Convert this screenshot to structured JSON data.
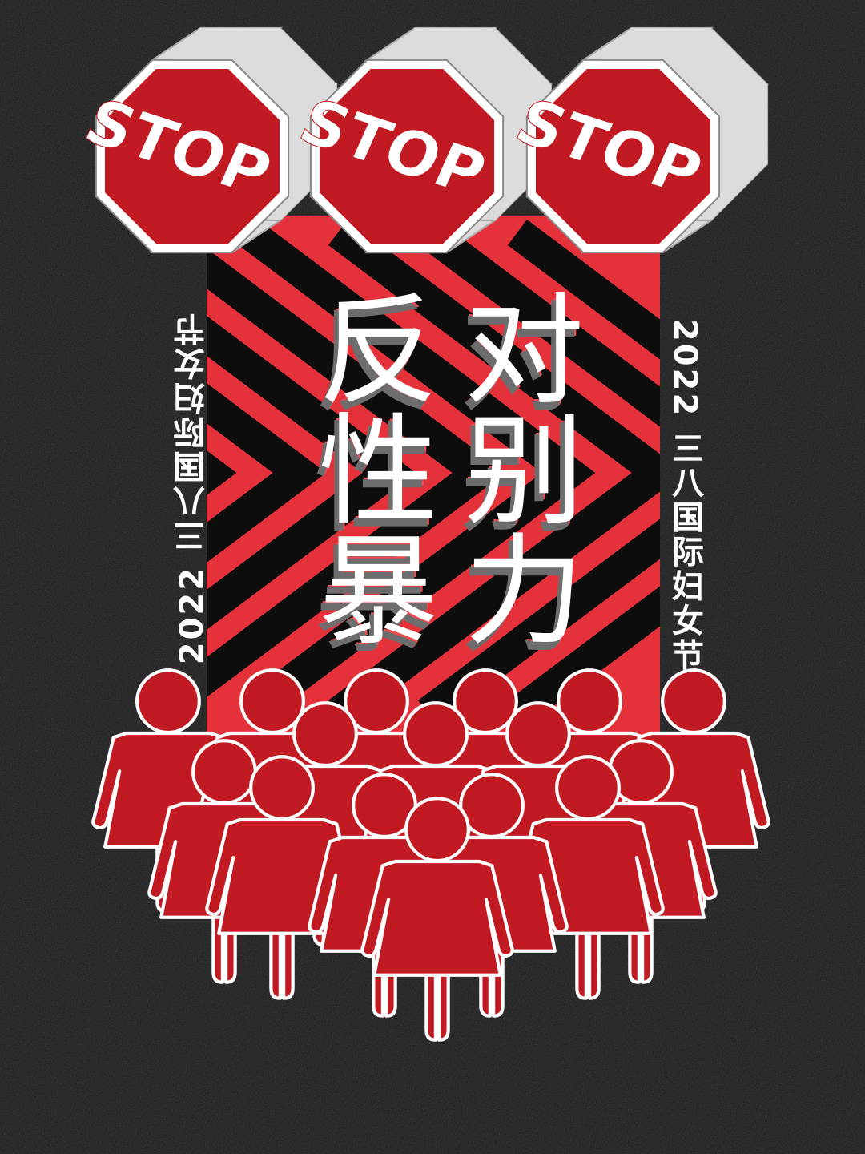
{
  "poster": {
    "signs": [
      "STOP",
      "STOP",
      "STOP"
    ],
    "title_col_1": "反性暴",
    "title_col_2": "对别力",
    "side_text_left": "2022 三八国际妇女节",
    "side_text_right": "2022 三八国际妇女节"
  },
  "colors": {
    "background": "#161616",
    "red": "#c21a22",
    "stripe_red": "#e5313a",
    "stripe_black": "#0d0d0d",
    "white": "#ffffff",
    "sign_side": "#dcdcdc"
  },
  "icons": [
    "stop-sign-icon",
    "woman-figure-icon"
  ]
}
